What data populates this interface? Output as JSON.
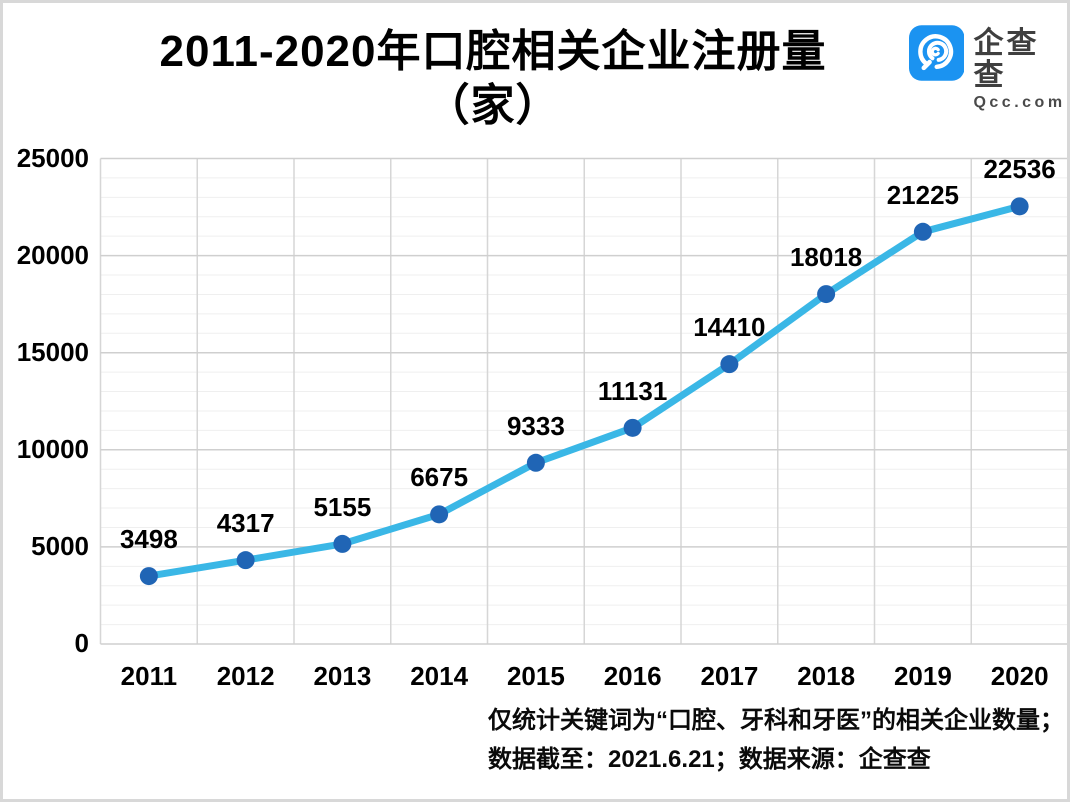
{
  "header": {
    "title_line1": "2011-2020年口腔相关企业注册量",
    "title_line2": "（家）",
    "logo": {
      "icon": "qcc-magnifier-icon",
      "brand": "企查查",
      "domain": "Qcc.com",
      "brand_color": "#1b93f1"
    }
  },
  "chart_data": {
    "type": "line",
    "title": "2011-2020年口腔相关企业注册量（家）",
    "categories": [
      "2011",
      "2012",
      "2013",
      "2014",
      "2015",
      "2016",
      "2017",
      "2018",
      "2019",
      "2020"
    ],
    "series": [
      {
        "name": "口腔相关企业注册量（家）",
        "values": [
          3498,
          4317,
          5155,
          6675,
          9333,
          11131,
          14410,
          18018,
          21225,
          22536
        ]
      }
    ],
    "xlabel": "",
    "ylabel": "",
    "ylim": [
      0,
      25000
    ],
    "y_major_ticks": [
      0,
      5000,
      10000,
      15000,
      20000,
      25000
    ],
    "y_minor_step": 1000,
    "grid": "major-and-minor-horizontal, category-boundary-vertical",
    "legend": "none",
    "data_labels": "above-points",
    "line_color": "#3ab7e6",
    "marker_color": "#2065b5",
    "grid_major_color": "#cfcfcf",
    "grid_minor_color": "#efefef",
    "grid_vertical_color": "#d6d6d6"
  },
  "footer": {
    "line1": "仅统计关键词为“口腔、牙科和牙医”的相关企业数量；",
    "line2": "数据截至：2021.6.21；数据来源：企查查"
  }
}
